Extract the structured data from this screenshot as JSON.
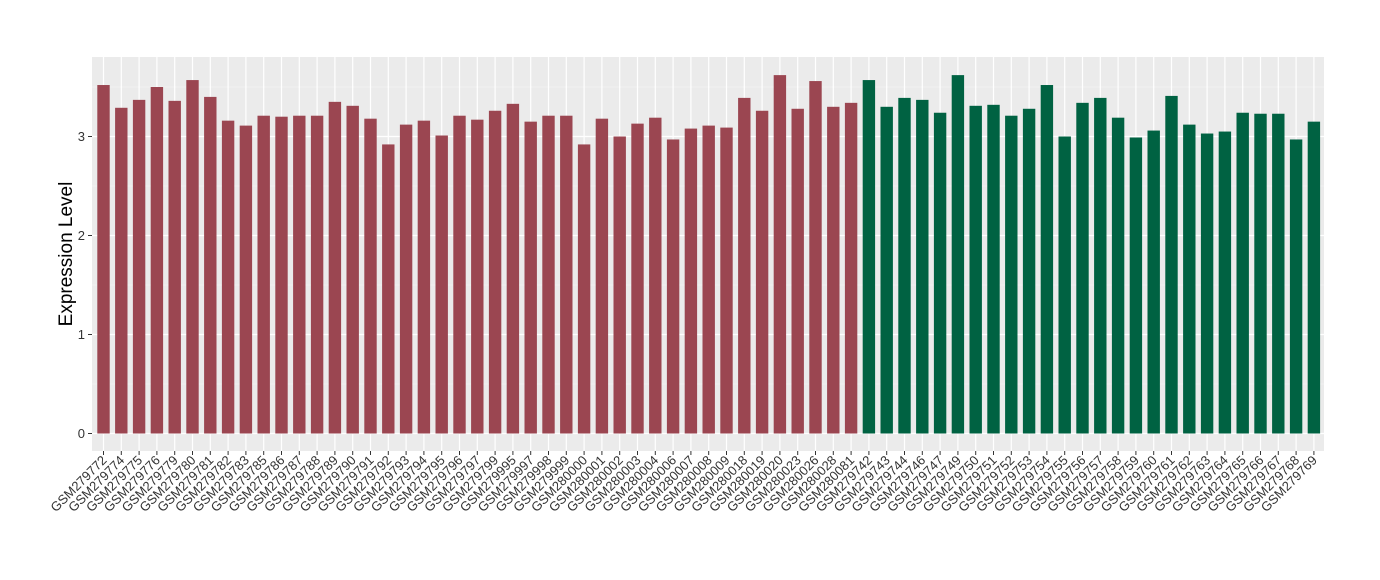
{
  "chart_data": {
    "type": "bar",
    "title": "",
    "xlabel": "",
    "ylabel": "Expression Level",
    "ylim": [
      0,
      3.75
    ],
    "yticks": [
      0,
      1,
      2,
      3
    ],
    "yticks_labels": [
      "0",
      "1",
      "2",
      "3"
    ],
    "grid": true,
    "legend": "none",
    "categories": [
      "GSM279772",
      "GSM279774",
      "GSM279775",
      "GSM279776",
      "GSM279779",
      "GSM279780",
      "GSM279781",
      "GSM279782",
      "GSM279783",
      "GSM279785",
      "GSM279786",
      "GSM279787",
      "GSM279788",
      "GSM279789",
      "GSM279790",
      "GSM279791",
      "GSM279792",
      "GSM279793",
      "GSM279794",
      "GSM279795",
      "GSM279796",
      "GSM279797",
      "GSM279799",
      "GSM279995",
      "GSM279997",
      "GSM279998",
      "GSM279999",
      "GSM280000",
      "GSM280001",
      "GSM280002",
      "GSM280003",
      "GSM280004",
      "GSM280006",
      "GSM280007",
      "GSM280008",
      "GSM280009",
      "GSM280018",
      "GSM280019",
      "GSM280020",
      "GSM280023",
      "GSM280026",
      "GSM280028",
      "GSM280081",
      "GSM279742",
      "GSM279743",
      "GSM279744",
      "GSM279746",
      "GSM279747",
      "GSM279749",
      "GSM279750",
      "GSM279751",
      "GSM279752",
      "GSM279753",
      "GSM279754",
      "GSM279755",
      "GSM279756",
      "GSM279757",
      "GSM279758",
      "GSM279759",
      "GSM279760",
      "GSM279761",
      "GSM279762",
      "GSM279763",
      "GSM279764",
      "GSM279765",
      "GSM279766",
      "GSM279767",
      "GSM279768",
      "GSM279769"
    ],
    "values": [
      3.52,
      3.29,
      3.37,
      3.5,
      3.36,
      3.57,
      3.4,
      3.16,
      3.11,
      3.21,
      3.2,
      3.21,
      3.21,
      3.35,
      3.31,
      3.18,
      2.92,
      3.12,
      3.16,
      3.01,
      3.21,
      3.17,
      3.26,
      3.33,
      3.15,
      3.21,
      3.21,
      2.92,
      3.18,
      3.0,
      3.13,
      3.19,
      2.97,
      3.08,
      3.11,
      3.09,
      3.39,
      3.26,
      3.62,
      3.28,
      3.56,
      3.3,
      3.34,
      3.57,
      3.3,
      3.39,
      3.37,
      3.24,
      3.62,
      3.31,
      3.32,
      3.21,
      3.28,
      3.52,
      3.0,
      3.34,
      3.39,
      3.19,
      2.99,
      3.06,
      3.41,
      3.12,
      3.03,
      3.05,
      3.24,
      3.23,
      3.23,
      2.97,
      3.15
    ],
    "group_colors": [
      "#9b4651",
      "#006242"
    ],
    "group_split_index": 43
  }
}
